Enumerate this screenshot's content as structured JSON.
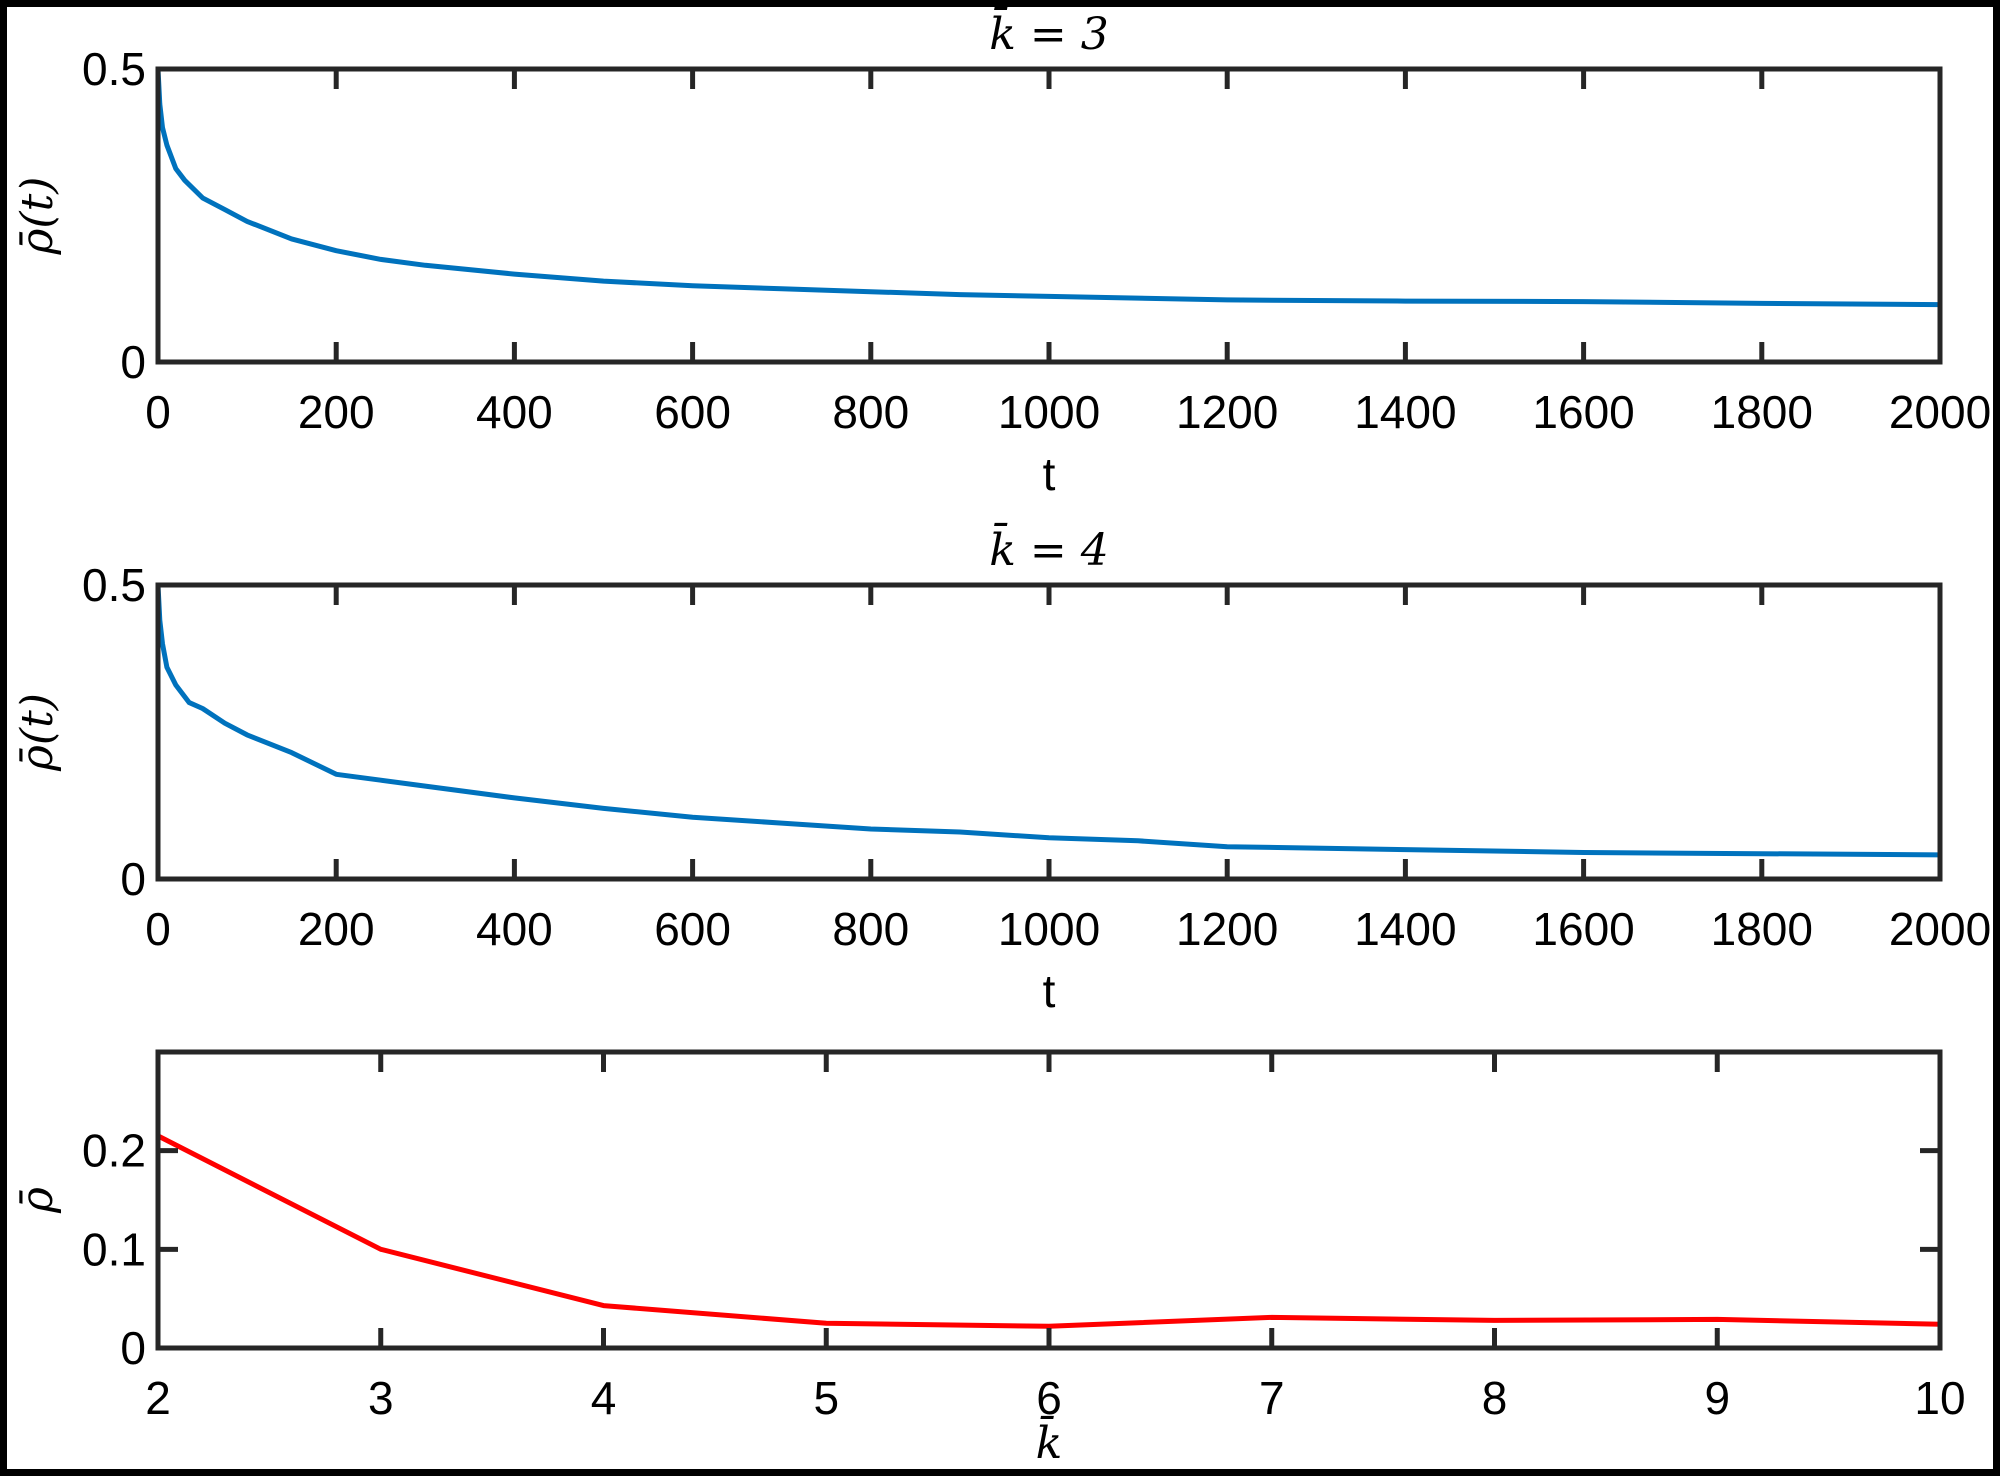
{
  "chart_data": [
    {
      "type": "line",
      "title": "k̄ = 3",
      "xlabel": "t",
      "ylabel": "ρ̄(t)",
      "xlim": [
        0,
        2000
      ],
      "ylim": [
        0,
        0.5
      ],
      "xticks": [
        "0",
        "200",
        "400",
        "600",
        "800",
        "1000",
        "1200",
        "1400",
        "1600",
        "1800",
        "2000"
      ],
      "yticks": [
        "0",
        "0.5"
      ],
      "grid": false,
      "color": "#0072BD",
      "x": [
        0,
        2,
        5,
        10,
        20,
        30,
        50,
        75,
        100,
        150,
        200,
        250,
        300,
        400,
        500,
        600,
        700,
        800,
        900,
        1000,
        1200,
        1400,
        1600,
        1800,
        2000
      ],
      "y": [
        0.5,
        0.44,
        0.4,
        0.37,
        0.33,
        0.31,
        0.28,
        0.26,
        0.24,
        0.21,
        0.19,
        0.175,
        0.165,
        0.15,
        0.138,
        0.13,
        0.125,
        0.12,
        0.115,
        0.112,
        0.106,
        0.104,
        0.103,
        0.1,
        0.098
      ]
    },
    {
      "type": "line",
      "title": "k̄ = 4",
      "xlabel": "t",
      "ylabel": "ρ̄(t)",
      "xlim": [
        0,
        2000
      ],
      "ylim": [
        0,
        0.5
      ],
      "xticks": [
        "0",
        "200",
        "400",
        "600",
        "800",
        "1000",
        "1200",
        "1400",
        "1600",
        "1800",
        "2000"
      ],
      "yticks": [
        "0",
        "0.5"
      ],
      "grid": false,
      "color": "#0072BD",
      "x": [
        0,
        2,
        5,
        10,
        20,
        35,
        50,
        75,
        100,
        150,
        200,
        250,
        300,
        400,
        500,
        600,
        700,
        800,
        900,
        1000,
        1100,
        1200,
        1400,
        1600,
        1800,
        2000
      ],
      "y": [
        0.5,
        0.44,
        0.4,
        0.36,
        0.33,
        0.3,
        0.29,
        0.265,
        0.245,
        0.215,
        0.178,
        0.168,
        0.158,
        0.138,
        0.12,
        0.105,
        0.095,
        0.085,
        0.08,
        0.07,
        0.065,
        0.055,
        0.05,
        0.045,
        0.043,
        0.041
      ]
    },
    {
      "type": "line",
      "title": "",
      "xlabel": "k̄",
      "ylabel": "ρ̄",
      "xlim": [
        2,
        10
      ],
      "ylim": [
        0,
        0.3
      ],
      "xticks": [
        "2",
        "3",
        "4",
        "5",
        "6",
        "7",
        "8",
        "9",
        "10"
      ],
      "yticks": [
        "0",
        "0.1",
        "0.2"
      ],
      "grid": false,
      "color": "#FF0000",
      "x": [
        2,
        3,
        4,
        5,
        6,
        7,
        8,
        9,
        10
      ],
      "y": [
        0.215,
        0.1,
        0.043,
        0.025,
        0.022,
        0.031,
        0.028,
        0.029,
        0.024
      ]
    }
  ]
}
